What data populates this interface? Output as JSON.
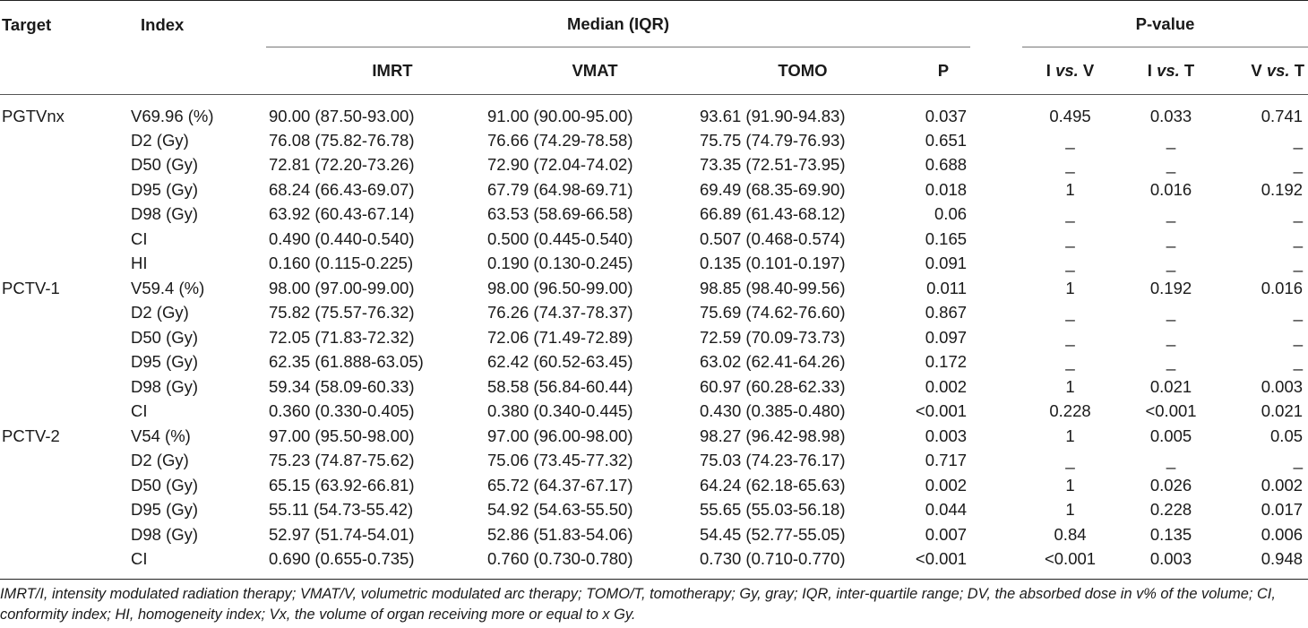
{
  "headers": {
    "target": "Target",
    "index": "Index",
    "median": "Median (IQR)",
    "pvalue": "P-value",
    "imrt": "IMRT",
    "vmat": "VMAT",
    "tomo": "TOMO",
    "p": "P",
    "ivv_pre": "I ",
    "ivv_em": "vs.",
    "ivv_post": " V",
    "ivt_pre": "I ",
    "ivt_em": "vs.",
    "ivt_post": " T",
    "vvt_pre": "V ",
    "vvt_em": "vs.",
    "vvt_post": " T"
  },
  "rows": [
    {
      "target": "PGTVnx",
      "index": "V69.96 (%)",
      "imrt": "90.00 (87.50-93.00)",
      "vmat": "91.00 (90.00-95.00)",
      "tomo": "93.61 (91.90-94.83)",
      "p": "0.037",
      "ivv": "0.495",
      "ivt": "0.033",
      "vvt": "0.741"
    },
    {
      "target": "",
      "index": "D2 (Gy)",
      "imrt": "76.08 (75.82-76.78)",
      "vmat": "76.66 (74.29-78.58)",
      "tomo": "75.75 (74.79-76.93)",
      "p": "0.651",
      "ivv": "_",
      "ivt": "_",
      "vvt": "_"
    },
    {
      "target": "",
      "index": "D50 (Gy)",
      "imrt": "72.81 (72.20-73.26)",
      "vmat": "72.90 (72.04-74.02)",
      "tomo": "73.35 (72.51-73.95)",
      "p": "0.688",
      "ivv": "_",
      "ivt": "_",
      "vvt": "_"
    },
    {
      "target": "",
      "index": "D95 (Gy)",
      "imrt": "68.24 (66.43-69.07)",
      "vmat": "67.79 (64.98-69.71)",
      "tomo": "69.49 (68.35-69.90)",
      "p": "0.018",
      "ivv": "1",
      "ivt": "0.016",
      "vvt": "0.192"
    },
    {
      "target": "",
      "index": "D98 (Gy)",
      "imrt": "63.92 (60.43-67.14)",
      "vmat": "63.53 (58.69-66.58)",
      "tomo": "66.89 (61.43-68.12)",
      "p": "0.06",
      "ivv": "_",
      "ivt": "_",
      "vvt": "_"
    },
    {
      "target": "",
      "index": "CI",
      "imrt": "0.490 (0.440-0.540)",
      "vmat": "0.500 (0.445-0.540)",
      "tomo": "0.507 (0.468-0.574)",
      "p": "0.165",
      "ivv": "_",
      "ivt": "_",
      "vvt": "_"
    },
    {
      "target": "",
      "index": "HI",
      "imrt": "0.160 (0.115-0.225)",
      "vmat": "0.190 (0.130-0.245)",
      "tomo": "0.135 (0.101-0.197)",
      "p": "0.091",
      "ivv": "_",
      "ivt": "_",
      "vvt": "_"
    },
    {
      "target": "PCTV-1",
      "index": "V59.4 (%)",
      "imrt": "98.00 (97.00-99.00)",
      "vmat": "98.00 (96.50-99.00)",
      "tomo": "98.85 (98.40-99.56)",
      "p": "0.011",
      "ivv": "1",
      "ivt": "0.192",
      "vvt": "0.016"
    },
    {
      "target": "",
      "index": "D2 (Gy)",
      "imrt": "75.82 (75.57-76.32)",
      "vmat": "76.26 (74.37-78.37)",
      "tomo": "75.69 (74.62-76.60)",
      "p": "0.867",
      "ivv": "_",
      "ivt": "_",
      "vvt": "_"
    },
    {
      "target": "",
      "index": "D50 (Gy)",
      "imrt": "72.05 (71.83-72.32)",
      "vmat": "72.06 (71.49-72.89)",
      "tomo": "72.59 (70.09-73.73)",
      "p": "0.097",
      "ivv": "_",
      "ivt": "_",
      "vvt": "_"
    },
    {
      "target": "",
      "index": "D95 (Gy)",
      "imrt": "62.35 (61.888-63.05)",
      "vmat": "62.42 (60.52-63.45)",
      "tomo": "63.02 (62.41-64.26)",
      "p": "0.172",
      "ivv": "_",
      "ivt": "_",
      "vvt": "_"
    },
    {
      "target": "",
      "index": "D98 (Gy)",
      "imrt": "59.34 (58.09-60.33)",
      "vmat": "58.58 (56.84-60.44)",
      "tomo": "60.97 (60.28-62.33)",
      "p": "0.002",
      "ivv": "1",
      "ivt": "0.021",
      "vvt": "0.003"
    },
    {
      "target": "",
      "index": "CI",
      "imrt": "0.360 (0.330-0.405)",
      "vmat": "0.380 (0.340-0.445)",
      "tomo": "0.430 (0.385-0.480)",
      "p": "<0.001",
      "ivv": "0.228",
      "ivt": "<0.001",
      "vvt": "0.021"
    },
    {
      "target": "PCTV-2",
      "index": "V54 (%)",
      "imrt": "97.00 (95.50-98.00)",
      "vmat": "97.00 (96.00-98.00)",
      "tomo": "98.27 (96.42-98.98)",
      "p": "0.003",
      "ivv": "1",
      "ivt": "0.005",
      "vvt": "0.05"
    },
    {
      "target": "",
      "index": "D2 (Gy)",
      "imrt": "75.23 (74.87-75.62)",
      "vmat": "75.06 (73.45-77.32)",
      "tomo": "75.03 (74.23-76.17)",
      "p": "0.717",
      "ivv": "_",
      "ivt": "_",
      "vvt": "_"
    },
    {
      "target": "",
      "index": "D50 (Gy)",
      "imrt": "65.15 (63.92-66.81)",
      "vmat": "65.72 (64.37-67.17)",
      "tomo": "64.24 (62.18-65.63)",
      "p": "0.002",
      "ivv": "1",
      "ivt": "0.026",
      "vvt": "0.002"
    },
    {
      "target": "",
      "index": "D95 (Gy)",
      "imrt": "55.11 (54.73-55.42)",
      "vmat": "54.92 (54.63-55.50)",
      "tomo": "55.65 (55.03-56.18)",
      "p": "0.044",
      "ivv": "1",
      "ivt": "0.228",
      "vvt": "0.017"
    },
    {
      "target": "",
      "index": "D98 (Gy)",
      "imrt": "52.97 (51.74-54.01)",
      "vmat": "52.86 (51.83-54.06)",
      "tomo": "54.45 (52.77-55.05)",
      "p": "0.007",
      "ivv": "0.84",
      "ivt": "0.135",
      "vvt": "0.006"
    },
    {
      "target": "",
      "index": "CI",
      "imrt": "0.690 (0.655-0.735)",
      "vmat": "0.760 (0.730-0.780)",
      "tomo": "0.730 (0.710-0.770)",
      "p": "<0.001",
      "ivv": "<0.001",
      "ivt": "0.003",
      "vvt": "0.948"
    }
  ],
  "footnote": "IMRT/I, intensity modulated radiation therapy; VMAT/V, volumetric modulated arc therapy; TOMO/T, tomotherapy; Gy, gray; IQR, inter-quartile range; DV, the absorbed dose in v% of the volume; CI, conformity index; HI, homogeneity index; Vx, the volume of organ receiving more or equal to x Gy."
}
